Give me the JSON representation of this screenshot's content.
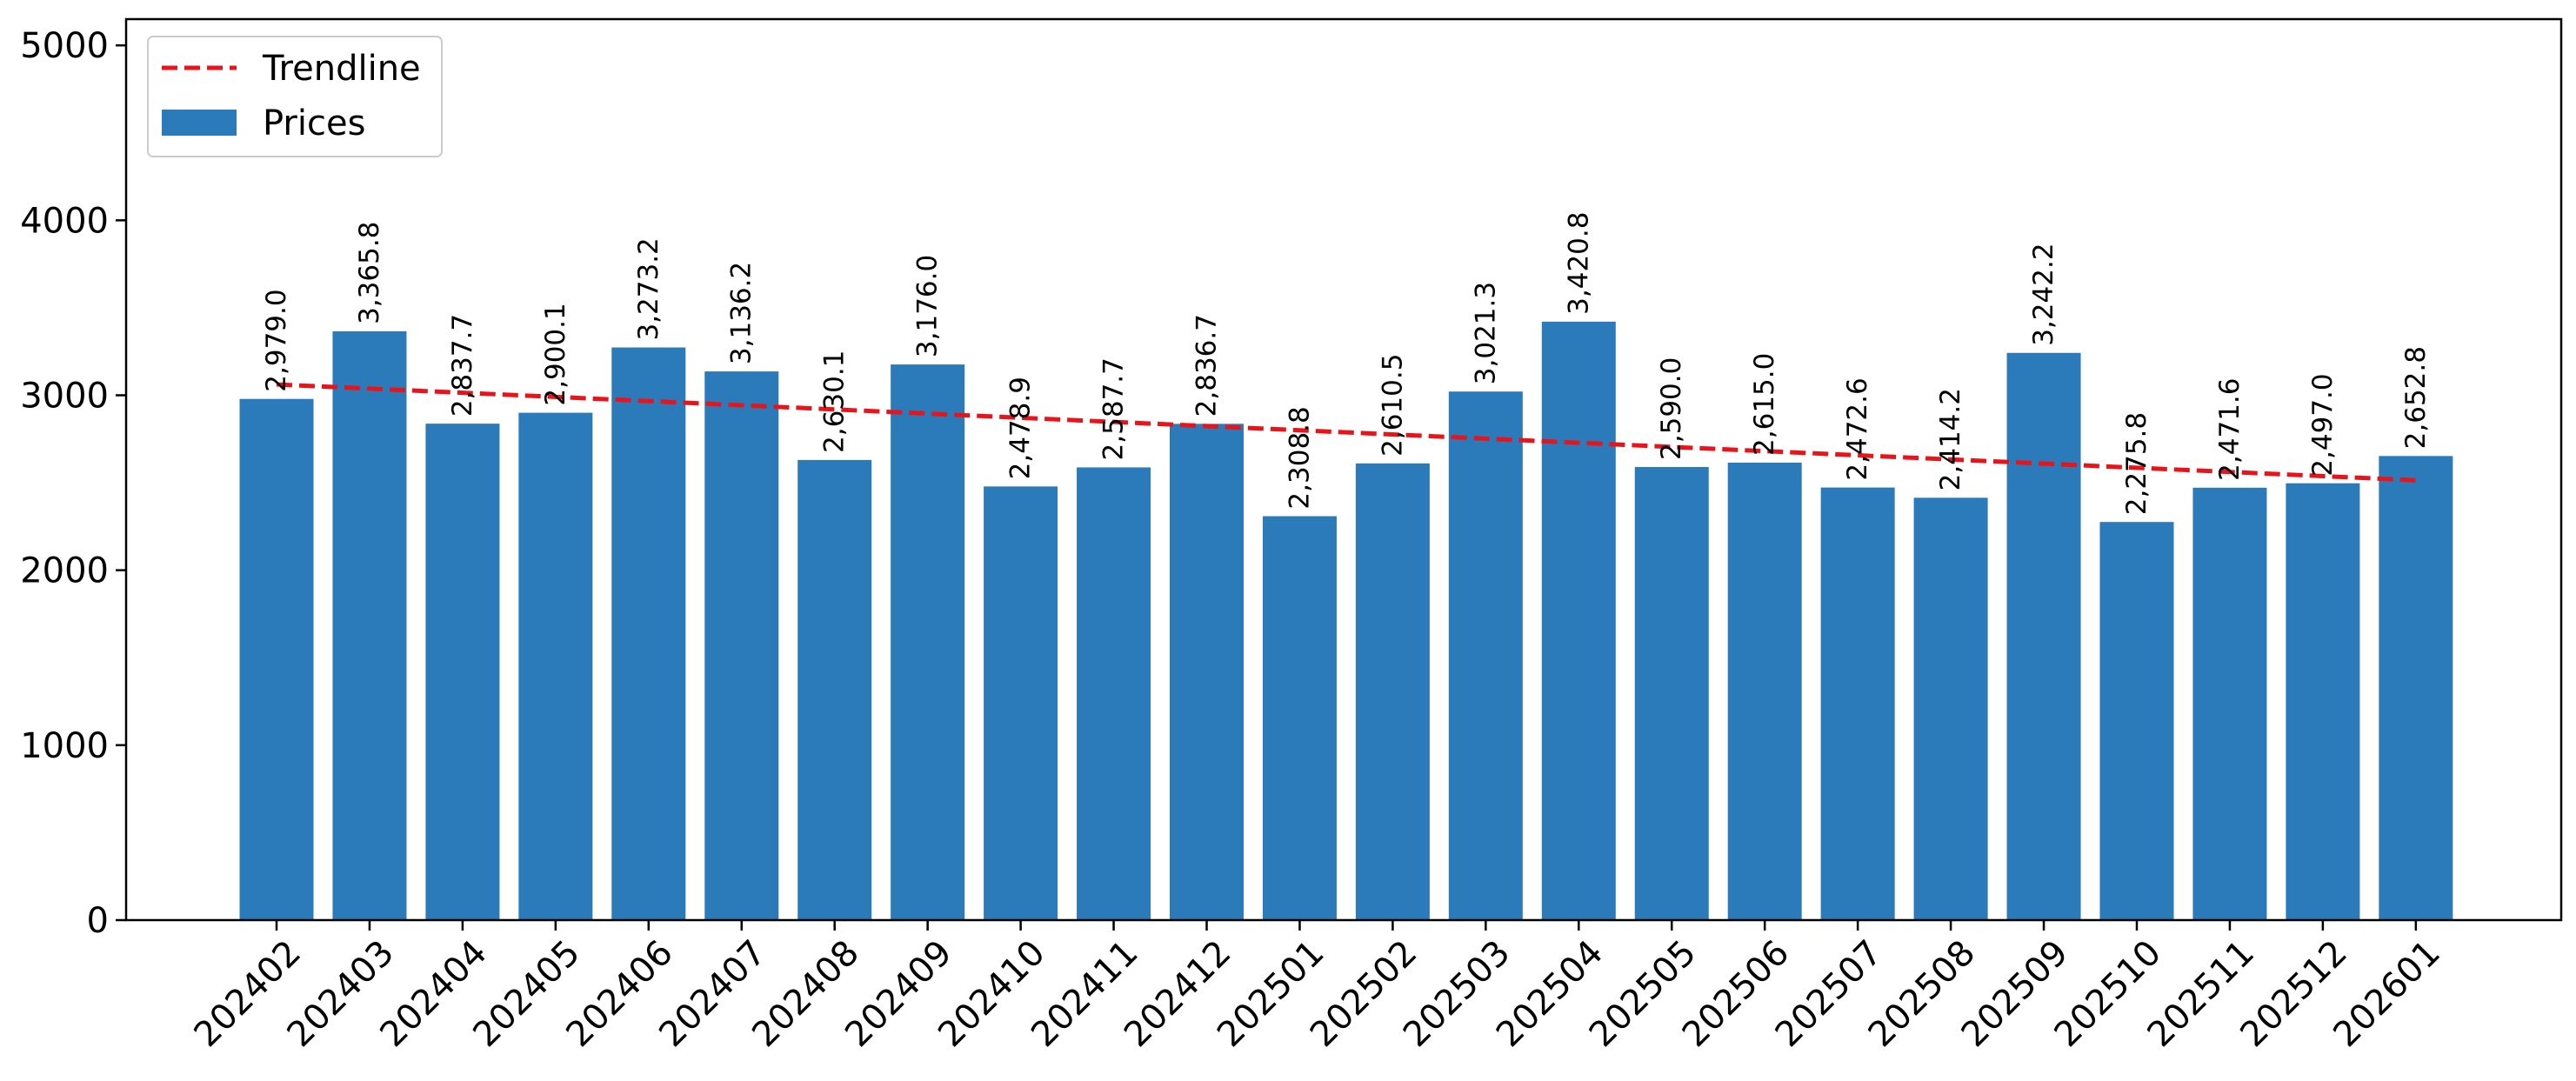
{
  "chart_data": {
    "type": "bar",
    "title": "",
    "xlabel": "",
    "ylabel": "",
    "categories": [
      "202402",
      "202403",
      "202404",
      "202405",
      "202406",
      "202407",
      "202408",
      "202409",
      "202410",
      "202411",
      "202412",
      "202501",
      "202502",
      "202503",
      "202504",
      "202505",
      "202506",
      "202507",
      "202508",
      "202509",
      "202510",
      "202511",
      "202512",
      "202601"
    ],
    "series": [
      {
        "name": "Prices",
        "type": "bar",
        "color": "#2b7bba",
        "values": [
          2979.0,
          3365.8,
          2837.7,
          2900.1,
          3273.2,
          3136.2,
          2630.1,
          3176.0,
          2478.9,
          2587.7,
          2836.7,
          2308.8,
          2610.5,
          3021.3,
          3420.8,
          2590.0,
          2615.0,
          2472.6,
          2414.2,
          3242.2,
          2275.8,
          2471.6,
          2497.0,
          2652.8
        ],
        "labels": [
          "2,979.0",
          "3,365.8",
          "2,837.7",
          "2,900.1",
          "3,273.2",
          "3,136.2",
          "2,630.1",
          "3,176.0",
          "2,478.9",
          "2,587.7",
          "2,836.7",
          "2,308.8",
          "2,610.5",
          "3,021.3",
          "3,420.8",
          "2,590.0",
          "2,615.0",
          "2,472.6",
          "2,414.2",
          "3,242.2",
          "2,275.8",
          "2,471.6",
          "2,497.0",
          "2,652.8"
        ]
      },
      {
        "name": "Trendline",
        "type": "line",
        "style": "dashed",
        "color": "#e8141a",
        "start": 3062,
        "end": 2514
      }
    ],
    "ylim": [
      0,
      5150
    ],
    "yticks": [
      0,
      1000,
      2000,
      3000,
      4000,
      5000
    ],
    "grid": false,
    "legend_position": "top-left",
    "legend_order": [
      "Trendline",
      "Prices"
    ]
  }
}
